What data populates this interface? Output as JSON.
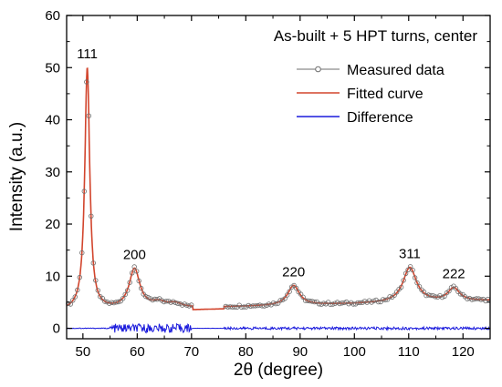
{
  "chart_data": {
    "type": "line",
    "annotation": "As-built + 5 HPT turns, center",
    "xlabel": "2θ (degree)",
    "ylabel": "Intensity (a.u.)",
    "xlim": [
      47,
      125
    ],
    "ylim": [
      -2,
      60
    ],
    "x_ticks": [
      50,
      60,
      70,
      80,
      90,
      100,
      110,
      120
    ],
    "y_ticks": [
      0,
      10,
      20,
      30,
      40,
      50,
      60
    ],
    "legend_position": "top-right",
    "series": [
      {
        "name": "Measured data",
        "color": "#6e6e6e",
        "marker": "open-circle"
      },
      {
        "name": "Fitted curve",
        "color": "#d2452d",
        "marker": "none"
      },
      {
        "name": "Difference",
        "color": "#1a1adc",
        "marker": "none"
      }
    ],
    "background": {
      "start": 3.3,
      "end": 5.3
    },
    "peaks": [
      {
        "label": "111",
        "x": 50.8,
        "height": 46.5,
        "width": 0.55
      },
      {
        "label": "200",
        "x": 59.5,
        "height": 7.6,
        "width": 1.2
      },
      {
        "label": "",
        "x": 64.0,
        "height": 1.0,
        "width": 1.6
      },
      {
        "label": "",
        "x": 67.0,
        "height": 0.8,
        "width": 1.5
      },
      {
        "label": "220",
        "x": 88.8,
        "height": 3.8,
        "width": 1.3
      },
      {
        "label": "311",
        "x": 110.2,
        "height": 6.7,
        "width": 1.5
      },
      {
        "label": "222",
        "x": 118.3,
        "height": 2.5,
        "width": 1.3
      }
    ],
    "measured_gaps": [
      [
        70.2,
        76.0
      ]
    ],
    "difference": {
      "baseline": 0,
      "noise_ranges": [
        [
          55,
          70,
          0.85
        ],
        [
          76,
          125,
          0.25
        ]
      ]
    }
  }
}
